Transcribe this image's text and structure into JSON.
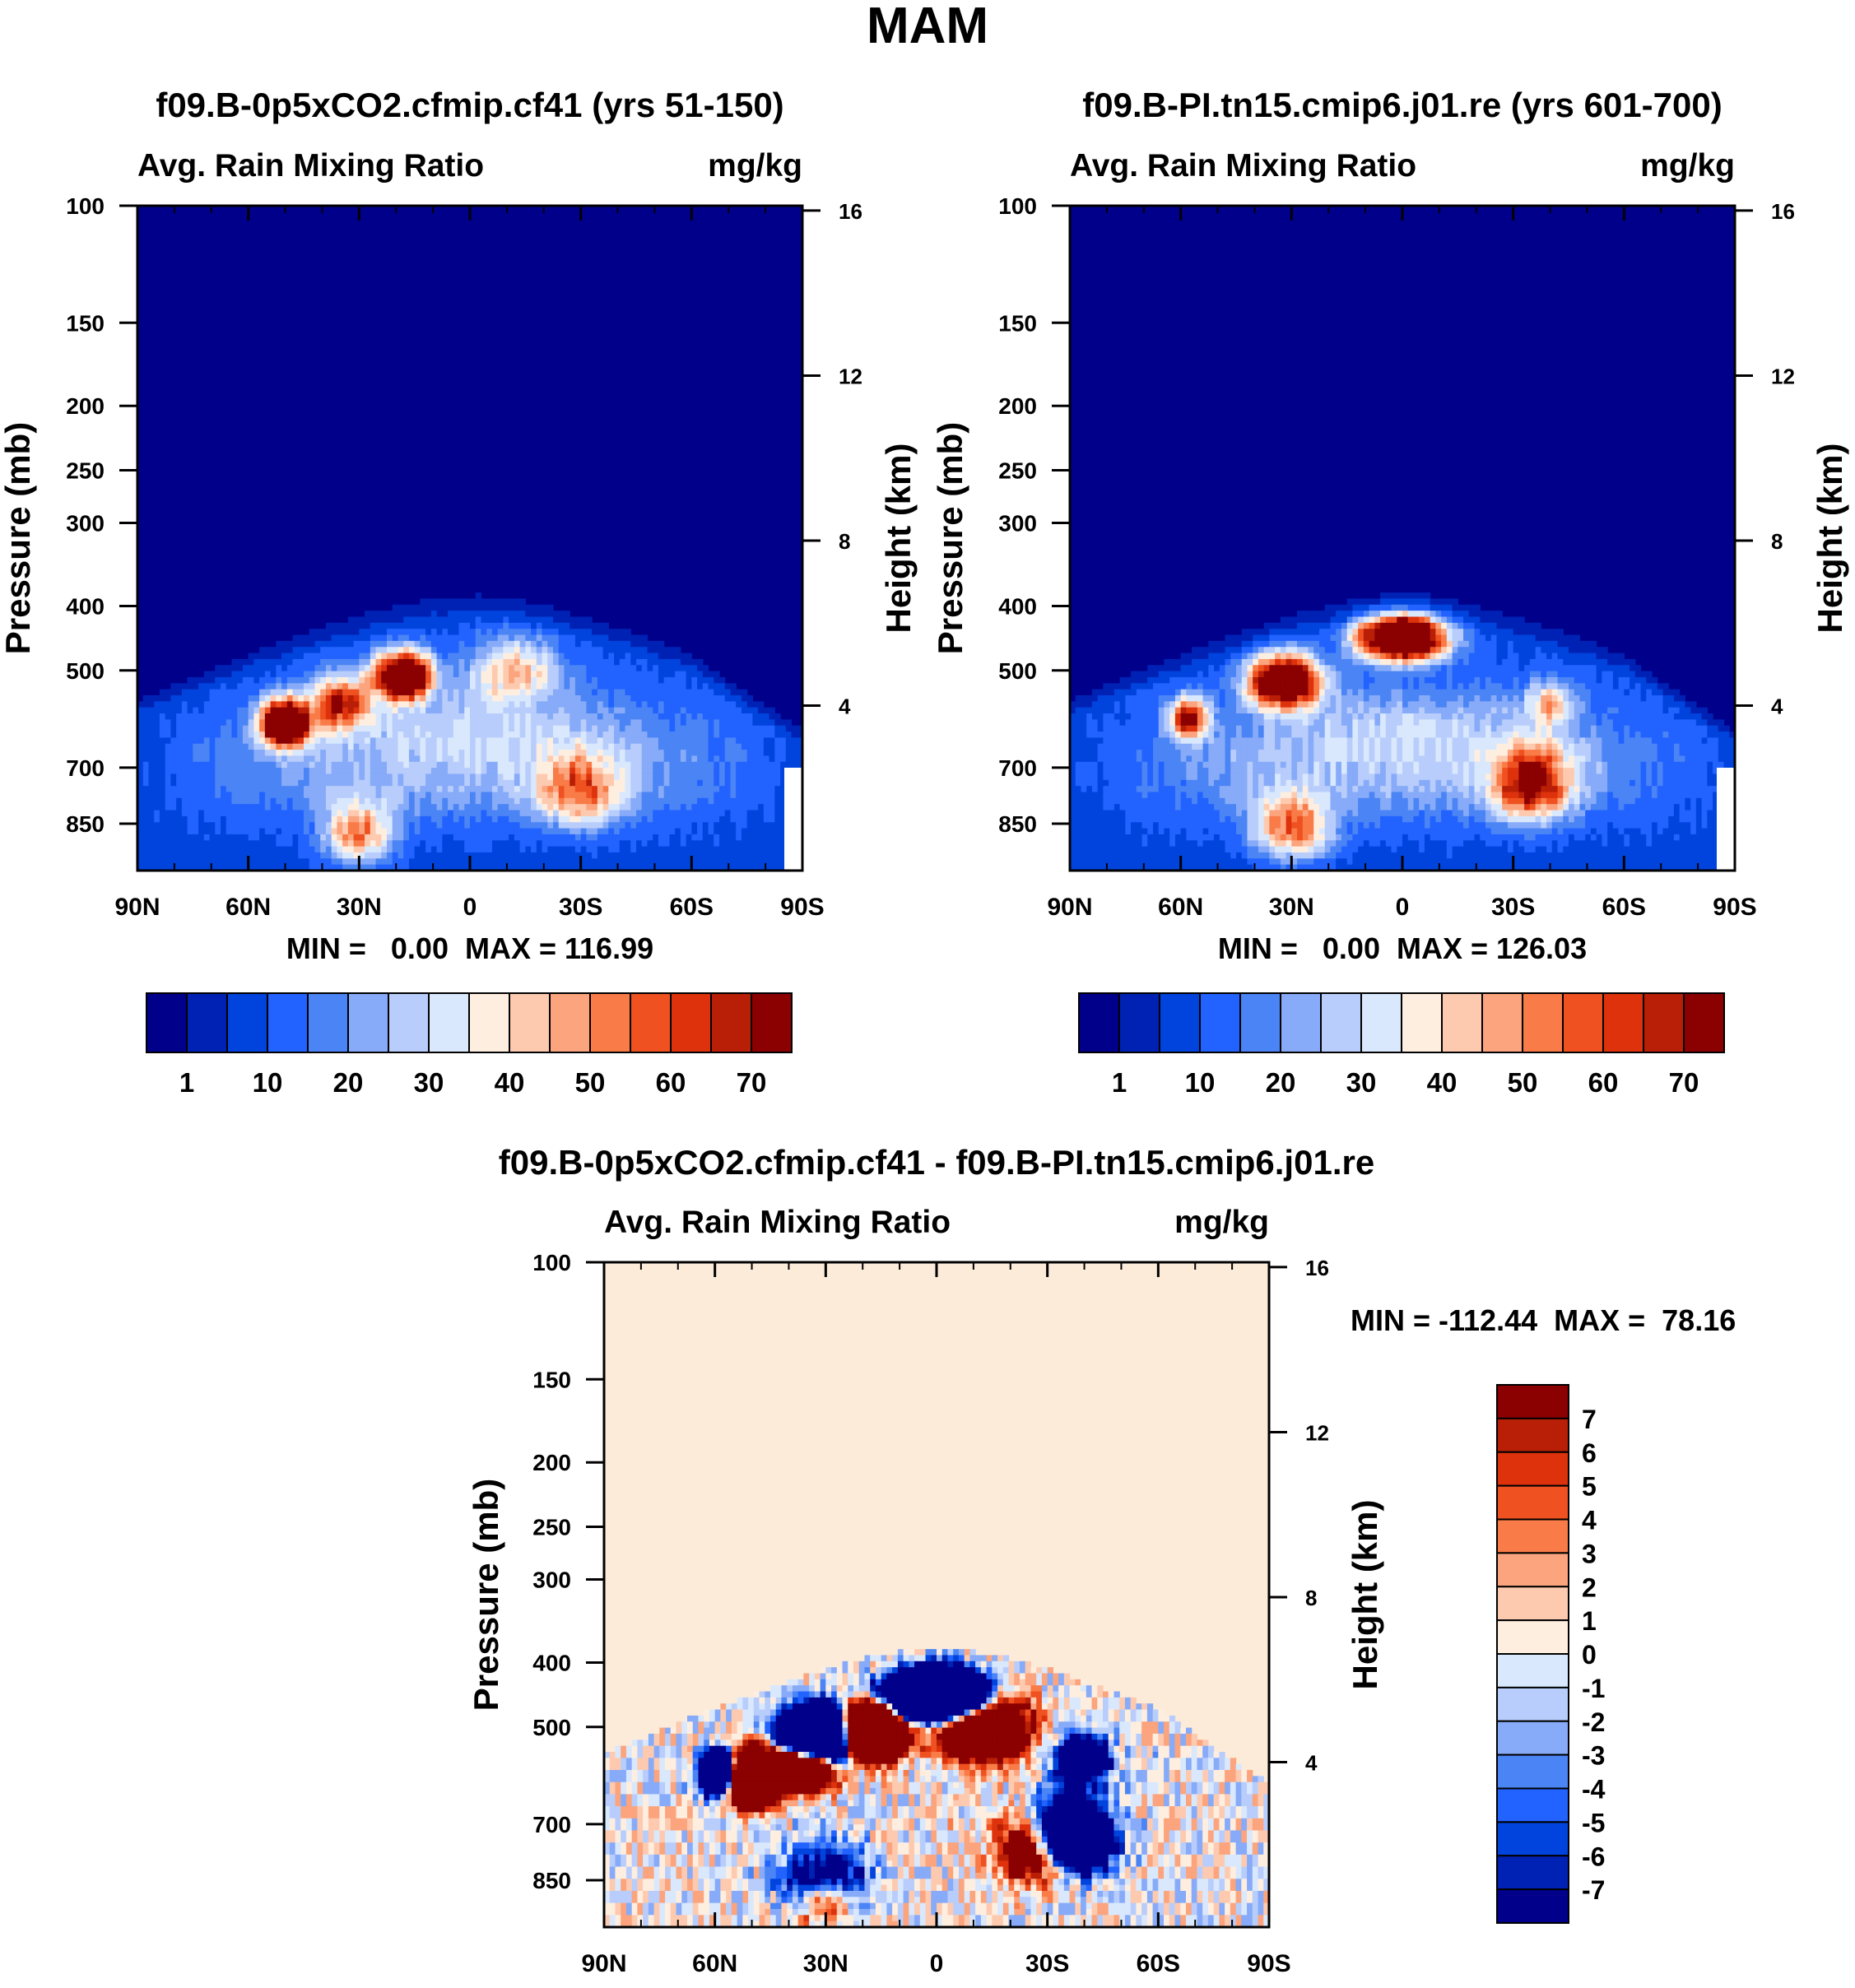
{
  "page": {
    "title": "MAM"
  },
  "colors": {
    "abs_palette": [
      "#00008b",
      "#0022b4",
      "#0044dd",
      "#2262ff",
      "#4b84f5",
      "#87abf8",
      "#b8cdfb",
      "#d9e8fd",
      "#feeee0",
      "#fdcab0",
      "#fba47d",
      "#f97b47",
      "#ef5120",
      "#de320c",
      "#b81f06",
      "#8b0000"
    ],
    "diff_palette": [
      "#00008b",
      "#0022b4",
      "#0044dd",
      "#2262ff",
      "#4b84f5",
      "#87abf8",
      "#b8cdfb",
      "#d9e8fd",
      "#feeee0",
      "#fdcab0",
      "#fba47d",
      "#f97b47",
      "#ef5120",
      "#de320c",
      "#b81f06",
      "#8b0000"
    ],
    "diff_background": "#fdebd9"
  },
  "chart_data": [
    {
      "type": "heatmap",
      "title": "f09.B-0p5xCO2.cfmip.cf41 (yrs 51-150)",
      "left_label": "Avg. Rain Mixing Ratio",
      "right_label": "mg/kg",
      "ylabel": "Pressure (mb)",
      "y2label": "Height (km)",
      "x_ticks": [
        "90N",
        "60N",
        "30N",
        "0",
        "30S",
        "60S",
        "90S"
      ],
      "y_ticks": [
        "100",
        "150",
        "200",
        "250",
        "300",
        "400",
        "500",
        "700",
        "850"
      ],
      "y2_ticks": [
        "16",
        "12",
        "8",
        "4"
      ],
      "stats": "MIN =   0.00  MAX = 116.99",
      "colorbar_labels": [
        "1",
        "10",
        "20",
        "30",
        "40",
        "50",
        "60",
        "70"
      ],
      "levels": [
        1,
        5,
        10,
        15,
        20,
        25,
        30,
        35,
        40,
        45,
        50,
        55,
        60,
        65,
        70
      ],
      "blobs": [
        {
          "lat": 50,
          "p": 600,
          "amp": 115,
          "sx": 6,
          "sp": 45
        },
        {
          "lat": 18,
          "p": 510,
          "amp": 110,
          "sx": 7,
          "sp": 40
        },
        {
          "lat": 35,
          "p": 560,
          "amp": 55,
          "sx": 8,
          "sp": 50
        },
        {
          "lat": 30,
          "p": 880,
          "amp": 42,
          "sx": 9,
          "sp": 90
        },
        {
          "lat": -30,
          "p": 760,
          "amp": 40,
          "sx": 11,
          "sp": 90
        },
        {
          "lat": -12,
          "p": 500,
          "amp": 34,
          "sx": 12,
          "sp": 55
        }
      ]
    },
    {
      "type": "heatmap",
      "title": "f09.B-PI.tn15.cmip6.j01.re (yrs 601-700)",
      "left_label": "Avg. Rain Mixing Ratio",
      "right_label": "mg/kg",
      "ylabel": "Pressure (mb)",
      "y2label": "Height (km)",
      "x_ticks": [
        "90N",
        "60N",
        "30N",
        "0",
        "30S",
        "60S",
        "90S"
      ],
      "y_ticks": [
        "100",
        "150",
        "200",
        "250",
        "300",
        "400",
        "500",
        "700",
        "850"
      ],
      "y2_ticks": [
        "16",
        "12",
        "8",
        "4"
      ],
      "stats": "MIN =   0.00  MAX = 126.03",
      "colorbar_labels": [
        "1",
        "10",
        "20",
        "30",
        "40",
        "50",
        "60",
        "70"
      ],
      "levels": [
        1,
        5,
        10,
        15,
        20,
        25,
        30,
        35,
        40,
        45,
        50,
        55,
        60,
        65,
        70
      ],
      "blobs": [
        {
          "lat": 0,
          "p": 445,
          "amp": 120,
          "sx": 11,
          "sp": 35
        },
        {
          "lat": 32,
          "p": 520,
          "amp": 100,
          "sx": 9,
          "sp": 45
        },
        {
          "lat": 58,
          "p": 590,
          "amp": 60,
          "sx": 5,
          "sp": 40
        },
        {
          "lat": -35,
          "p": 740,
          "amp": 62,
          "sx": 10,
          "sp": 90
        },
        {
          "lat": 30,
          "p": 860,
          "amp": 48,
          "sx": 10,
          "sp": 90
        },
        {
          "lat": -40,
          "p": 560,
          "amp": 30,
          "sx": 6,
          "sp": 40
        }
      ]
    },
    {
      "type": "heatmap",
      "title": "f09.B-0p5xCO2.cfmip.cf41 - f09.B-PI.tn15.cmip6.j01.re",
      "left_label": "Avg. Rain Mixing Ratio",
      "right_label": "mg/kg",
      "ylabel": "Pressure (mb)",
      "y2label": "Height (km)",
      "x_ticks": [
        "90N",
        "60N",
        "30N",
        "0",
        "30S",
        "60S",
        "90S"
      ],
      "y_ticks": [
        "100",
        "150",
        "200",
        "250",
        "300",
        "400",
        "500",
        "700",
        "850"
      ],
      "y2_ticks": [
        "16",
        "12",
        "8",
        "4"
      ],
      "stats": "MIN = -112.44  MAX =  78.16",
      "colorbar_labels": [
        "7",
        "6",
        "5",
        "4",
        "3",
        "2",
        "1",
        "0",
        "-1",
        "-2",
        "-3",
        "-4",
        "-5",
        "-6",
        "-7"
      ],
      "levels": [
        -7,
        -6,
        -5,
        -4,
        -3,
        -2,
        -1,
        0,
        1,
        2,
        3,
        4,
        5,
        6,
        7
      ]
    }
  ]
}
